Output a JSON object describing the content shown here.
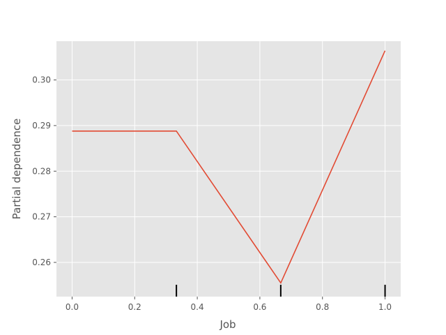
{
  "chart_data": {
    "type": "line",
    "title": "",
    "xlabel": "Job",
    "ylabel": "Partial dependence",
    "xlim": [
      -0.05,
      1.05
    ],
    "ylim": [
      0.2525,
      0.3085
    ],
    "grid": true,
    "x_ticks": [
      0.0,
      0.2,
      0.4,
      0.6,
      0.8,
      1.0
    ],
    "x_tick_labels": [
      "0.0",
      "0.2",
      "0.4",
      "0.6",
      "0.8",
      "1.0"
    ],
    "y_ticks": [
      0.26,
      0.27,
      0.28,
      0.29,
      0.3
    ],
    "y_tick_labels": [
      "0.26",
      "0.27",
      "0.28",
      "0.29",
      "0.30"
    ],
    "series": [
      {
        "x": [
          0.0,
          0.3333,
          0.6667,
          1.0
        ],
        "y": [
          0.2888,
          0.2888,
          0.2555,
          0.3064
        ],
        "color": "#E24A33"
      }
    ],
    "deciles": [
      0.3333,
      0.6667,
      1.0
    ],
    "background_color": "#E5E5E5",
    "grid_color": "#FFFFFF"
  }
}
